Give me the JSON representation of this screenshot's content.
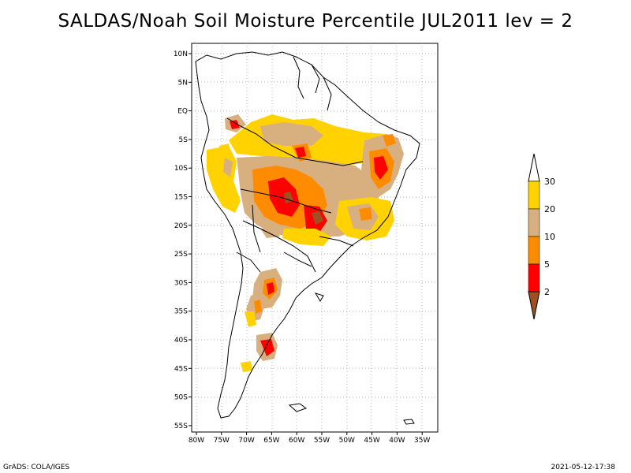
{
  "title": "SALDAS/Noah Soil Moisture Percentile JUL2011 lev = 2",
  "map": {
    "lat_labels": [
      "10N",
      "5N",
      "EQ",
      "5S",
      "10S",
      "15S",
      "20S",
      "25S",
      "30S",
      "35S",
      "40S",
      "45S",
      "50S",
      "55S"
    ],
    "lon_labels": [
      "80W",
      "75W",
      "70W",
      "65W",
      "60W",
      "55W",
      "50W",
      "45W",
      "40W",
      "35W"
    ]
  },
  "colorbar": {
    "labels": [
      "30",
      "20",
      "10",
      "5",
      "2"
    ],
    "colors": [
      "#ffd200",
      "#d8b080",
      "#ff8c00",
      "#ff0000",
      "#a05020"
    ],
    "top_color": "#ffffff"
  },
  "colors": {
    "shade_yellow": "#ffd200",
    "shade_tan": "#d8b080",
    "shade_orange": "#ff8c00",
    "shade_red": "#ff0000",
    "shade_brown": "#a05020"
  },
  "footer": {
    "credit": "GrADS: COLA/IGES",
    "timestamp": "2021-05-12-17:38"
  }
}
